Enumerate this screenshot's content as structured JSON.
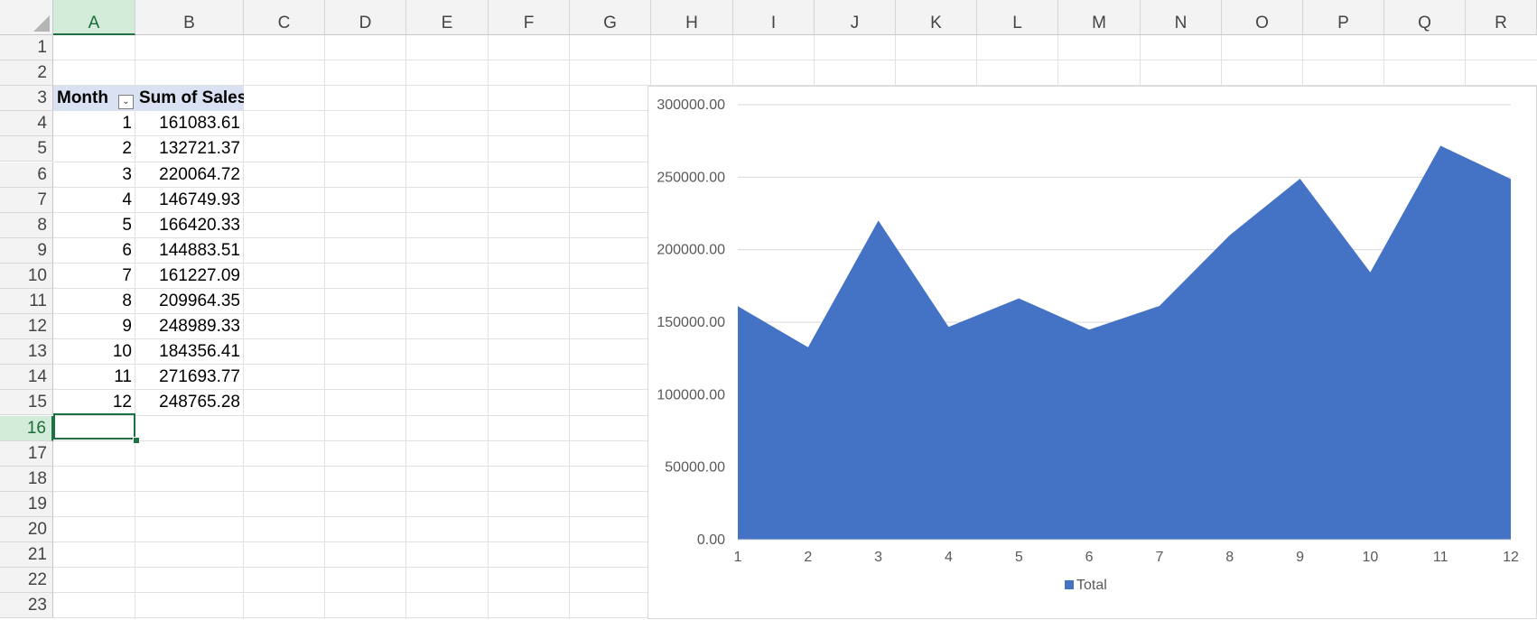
{
  "columns": [
    "A",
    "B",
    "C",
    "D",
    "E",
    "F",
    "G",
    "H",
    "I",
    "J",
    "K",
    "L",
    "M",
    "N",
    "O",
    "P",
    "Q",
    "R"
  ],
  "rows": [
    "1",
    "2",
    "3",
    "4",
    "5",
    "6",
    "7",
    "8",
    "9",
    "10",
    "11",
    "12",
    "13",
    "14",
    "15",
    "16",
    "17",
    "18",
    "19",
    "20",
    "21",
    "22",
    "23"
  ],
  "selected": {
    "column": "A",
    "row": "16"
  },
  "pivot": {
    "header_month": "Month",
    "header_sales": "Sum of Sales",
    "filter_icon": "dropdown-filter-icon",
    "records": [
      {
        "month": "1",
        "sales": "161083.61"
      },
      {
        "month": "2",
        "sales": "132721.37"
      },
      {
        "month": "3",
        "sales": "220064.72"
      },
      {
        "month": "4",
        "sales": "146749.93"
      },
      {
        "month": "5",
        "sales": "166420.33"
      },
      {
        "month": "6",
        "sales": "144883.51"
      },
      {
        "month": "7",
        "sales": "161227.09"
      },
      {
        "month": "8",
        "sales": "209964.35"
      },
      {
        "month": "9",
        "sales": "248989.33"
      },
      {
        "month": "10",
        "sales": "184356.41"
      },
      {
        "month": "11",
        "sales": "271693.77"
      },
      {
        "month": "12",
        "sales": "248765.28"
      }
    ]
  },
  "colors": {
    "header_fill": "#d9e1f2",
    "area": "#4472c4",
    "selection": "#1e7145"
  },
  "chart_data": {
    "type": "area",
    "categories": [
      "1",
      "2",
      "3",
      "4",
      "5",
      "6",
      "7",
      "8",
      "9",
      "10",
      "11",
      "12"
    ],
    "series": [
      {
        "name": "Total",
        "values": [
          161083.61,
          132721.37,
          220064.72,
          146749.93,
          166420.33,
          144883.51,
          161227.09,
          209964.35,
          248989.33,
          184356.41,
          271693.77,
          248765.28
        ]
      }
    ],
    "ylim": [
      0,
      300000
    ],
    "yticks": [
      "0.00",
      "50000.00",
      "100000.00",
      "150000.00",
      "200000.00",
      "250000.00",
      "300000.00"
    ],
    "grid": true,
    "legend": "bottom"
  }
}
